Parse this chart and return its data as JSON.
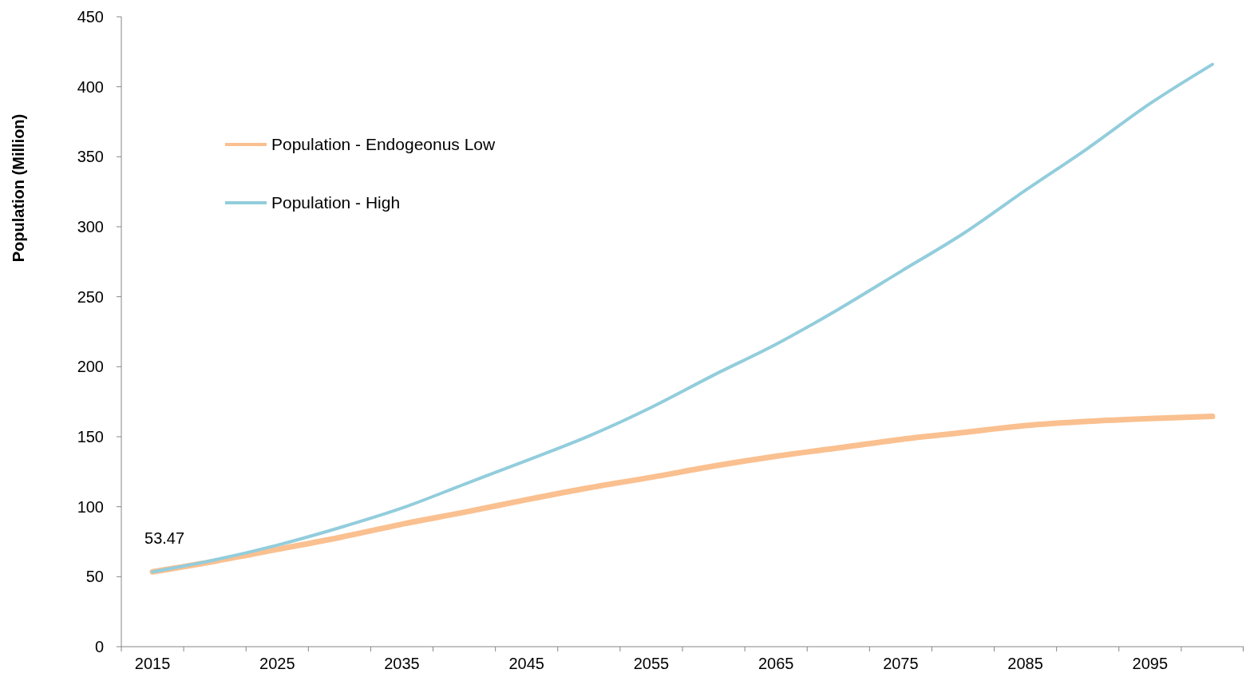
{
  "chart_data": {
    "type": "line",
    "ylabel": "Population (Million)",
    "categories": [
      "2015",
      null,
      "2025",
      null,
      "2035",
      null,
      "2045",
      null,
      "2055",
      null,
      "2065",
      null,
      "2075",
      null,
      "2085",
      null,
      "2095",
      null
    ],
    "series": [
      {
        "name": "Population - Endogeonus Low",
        "color": "#fac090",
        "values": [
          53.47,
          61,
          69.5,
          78,
          87.5,
          96,
          105,
          113.5,
          121,
          129,
          136,
          142,
          148,
          153,
          158,
          161,
          163,
          164.5
        ]
      },
      {
        "name": "Population - High",
        "color": "#92cddc",
        "values": [
          53.47,
          62,
          72.5,
          85,
          99,
          116,
          133,
          150.5,
          171,
          194,
          216,
          241,
          268,
          295,
          326,
          356,
          388,
          416
        ]
      }
    ],
    "ylim": [
      0,
      450
    ],
    "yticks": [
      0,
      50,
      100,
      150,
      200,
      250,
      300,
      350,
      400,
      450
    ],
    "annotations": [
      {
        "text": "53.47",
        "x": "2015",
        "y": 53.47
      }
    ],
    "legend": "top left",
    "grid": false,
    "marker": "none",
    "line_style": "solid"
  }
}
